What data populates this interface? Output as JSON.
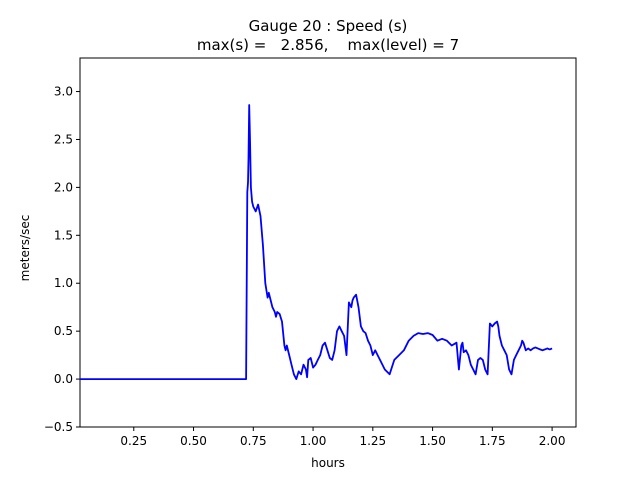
{
  "chart_data": {
    "type": "line",
    "title": "Gauge 20 : Speed (s)",
    "subtitle": "max(s) =   2.856,    max(level) = 7",
    "xlabel": "hours",
    "ylabel": "meters/sec",
    "xlim": [
      0.025,
      2.1
    ],
    "ylim": [
      -0.5,
      3.35
    ],
    "xticks": [
      0.25,
      0.5,
      0.75,
      1.0,
      1.25,
      1.5,
      1.75,
      2.0
    ],
    "xtick_labels": [
      "0.25",
      "0.50",
      "0.75",
      "1.00",
      "1.25",
      "1.50",
      "1.75",
      "2.00"
    ],
    "yticks": [
      -0.5,
      0.0,
      0.5,
      1.0,
      1.5,
      2.0,
      2.5,
      3.0
    ],
    "ytick_labels": [
      "−0.5",
      "0.0",
      "0.5",
      "1.0",
      "1.5",
      "2.0",
      "2.5",
      "3.0"
    ],
    "grid": false,
    "legend": "none",
    "series": [
      {
        "color": "#0000ff",
        "x": [
          0.025,
          0.72,
          0.725,
          0.728,
          0.73,
          0.733,
          0.736,
          0.74,
          0.745,
          0.75,
          0.76,
          0.77,
          0.78,
          0.79,
          0.8,
          0.81,
          0.815,
          0.82,
          0.83,
          0.84,
          0.845,
          0.85,
          0.86,
          0.87,
          0.88,
          0.885,
          0.89,
          0.9,
          0.91,
          0.92,
          0.93,
          0.94,
          0.95,
          0.96,
          0.97,
          0.975,
          0.98,
          0.99,
          1.0,
          1.01,
          1.02,
          1.03,
          1.04,
          1.05,
          1.06,
          1.07,
          1.08,
          1.09,
          1.1,
          1.11,
          1.12,
          1.13,
          1.14,
          1.15,
          1.16,
          1.165,
          1.17,
          1.18,
          1.19,
          1.2,
          1.21,
          1.22,
          1.23,
          1.24,
          1.25,
          1.26,
          1.27,
          1.28,
          1.3,
          1.32,
          1.34,
          1.36,
          1.38,
          1.4,
          1.42,
          1.44,
          1.46,
          1.48,
          1.5,
          1.52,
          1.54,
          1.56,
          1.58,
          1.6,
          1.61,
          1.62,
          1.625,
          1.63,
          1.64,
          1.65,
          1.66,
          1.67,
          1.68,
          1.69,
          1.7,
          1.71,
          1.72,
          1.73,
          1.74,
          1.75,
          1.76,
          1.77,
          1.775,
          1.78,
          1.79,
          1.8,
          1.81,
          1.82,
          1.83,
          1.84,
          1.85,
          1.86,
          1.87,
          1.875,
          1.88,
          1.89,
          1.9,
          1.91,
          1.92,
          1.93,
          1.94,
          1.95,
          1.96,
          1.97,
          1.98,
          1.99,
          2.0
        ],
        "y": [
          0.0,
          0.0,
          1.95,
          2.05,
          2.3,
          2.86,
          2.5,
          2.0,
          1.85,
          1.8,
          1.75,
          1.82,
          1.7,
          1.4,
          1.0,
          0.85,
          0.9,
          0.85,
          0.75,
          0.7,
          0.65,
          0.7,
          0.68,
          0.6,
          0.35,
          0.3,
          0.35,
          0.25,
          0.15,
          0.05,
          0.0,
          0.08,
          0.05,
          0.15,
          0.1,
          0.02,
          0.2,
          0.22,
          0.12,
          0.15,
          0.2,
          0.25,
          0.35,
          0.38,
          0.3,
          0.22,
          0.2,
          0.3,
          0.5,
          0.55,
          0.5,
          0.45,
          0.25,
          0.8,
          0.75,
          0.82,
          0.85,
          0.88,
          0.75,
          0.55,
          0.5,
          0.48,
          0.4,
          0.35,
          0.25,
          0.3,
          0.25,
          0.2,
          0.1,
          0.05,
          0.2,
          0.25,
          0.3,
          0.4,
          0.45,
          0.48,
          0.47,
          0.48,
          0.46,
          0.4,
          0.42,
          0.4,
          0.35,
          0.38,
          0.1,
          0.35,
          0.38,
          0.28,
          0.3,
          0.25,
          0.15,
          0.1,
          0.05,
          0.2,
          0.22,
          0.2,
          0.1,
          0.05,
          0.58,
          0.55,
          0.58,
          0.6,
          0.55,
          0.45,
          0.35,
          0.3,
          0.25,
          0.1,
          0.05,
          0.2,
          0.25,
          0.3,
          0.35,
          0.4,
          0.38,
          0.3,
          0.32,
          0.3,
          0.32,
          0.33,
          0.32,
          0.31,
          0.3,
          0.31,
          0.32,
          0.31,
          0.32
        ]
      }
    ]
  }
}
